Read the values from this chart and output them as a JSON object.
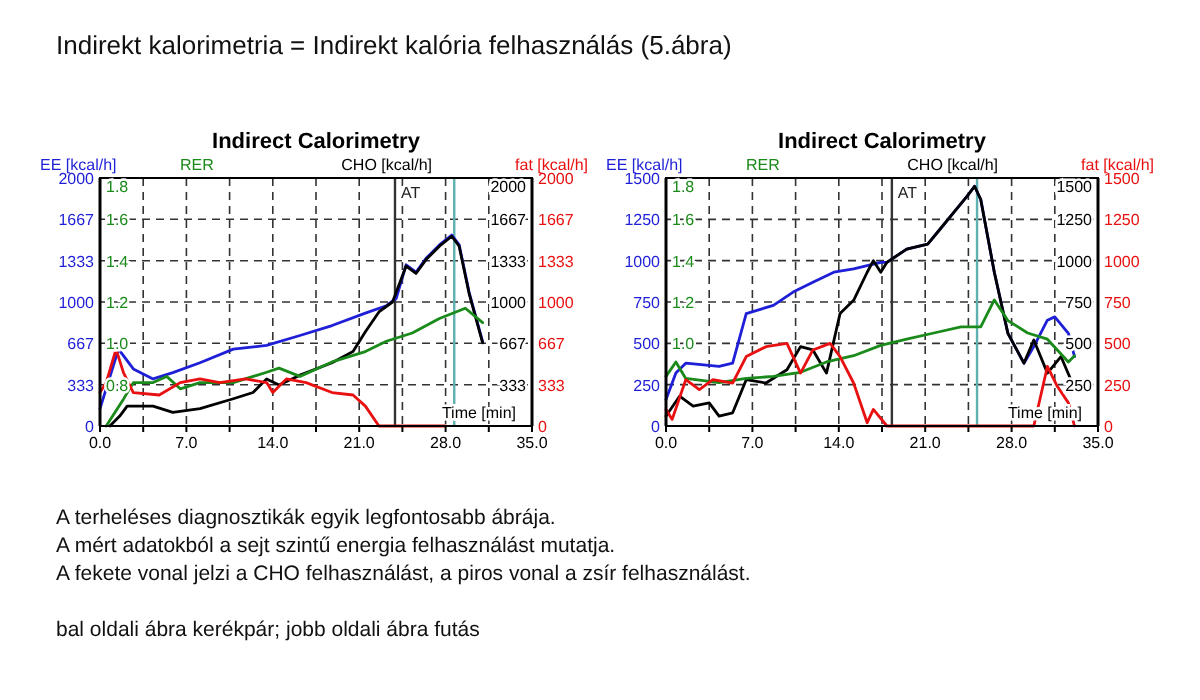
{
  "chart_data": [
    {
      "type": "other",
      "title": "Indirekt kalorimetria = Indirekt kalória felhasználás (5.ábra)",
      "annotations": [
        "A terheléses diagnosztikák egyik legfontosabb ábrája.",
        "A mért adatokból a sejt szintű energia felhasználást mutatja.",
        "A fekete vonal jelzi a CHO felhasználást, a piros vonal a zsír felhasználást.",
        "bal oldali ábra kerékpár; jobb oldali ábra futás"
      ]
    },
    {
      "type": "line",
      "title": "Indirect Calorimetry",
      "xlabel": "Time [min]",
      "ylabel": "EE [kcal/h]",
      "y2label": "fat [kcal/h]",
      "y3label": "RER",
      "grid": true,
      "xlim": [
        0,
        35
      ],
      "xticks": [
        {
          "value": 0,
          "label": "0.0"
        },
        {
          "value": 3.5,
          "label": null
        },
        {
          "value": 7,
          "label": "7.0"
        },
        {
          "value": 10.5,
          "label": null
        },
        {
          "value": 14,
          "label": "14.0"
        },
        {
          "value": 17.5,
          "label": null
        },
        {
          "value": 21,
          "label": "21.0"
        },
        {
          "value": 24.5,
          "label": null
        },
        {
          "value": 28,
          "label": "28.0"
        },
        {
          "value": 31.5,
          "label": null
        },
        {
          "value": 35,
          "label": "35.0"
        }
      ],
      "ylim": [
        0,
        2000
      ],
      "yticks": [
        0,
        333,
        667,
        1000,
        1333,
        1667,
        2000
      ],
      "y2lim": [
        0,
        2000
      ],
      "y2ticks": [
        0,
        333,
        667,
        1000,
        1333,
        1667,
        2000
      ],
      "y3lim": [
        0.6,
        1.8
      ],
      "y3ticks": [
        {
          "value": 0.8,
          "label": "0.8"
        },
        {
          "value": 1,
          "label": "1.0"
        },
        {
          "value": 1.2,
          "label": "1.2"
        },
        {
          "value": 1.4,
          "label": "1.4"
        },
        {
          "value": 1.6,
          "label": "1.6"
        },
        {
          "value": 1.8,
          "label": "1.8"
        }
      ],
      "ref_lines": [
        {
          "axis": "x",
          "value": 23.9,
          "label": "AT",
          "color": "#333333"
        },
        {
          "axis": "x",
          "value": 28.7,
          "color": "#5fb0b0"
        }
      ],
      "annotations": [
        "333",
        "667",
        "1000",
        "1333",
        "1667",
        "2000"
      ],
      "series": [
        {
          "color": "#1f1fd8",
          "axis": "y",
          "x": [
            0,
            1.5,
            2.7,
            4.3,
            5.9,
            8.1,
            10.8,
            13.5,
            16.2,
            18.8,
            21.5,
            23.2,
            24,
            24.8,
            25.6,
            26.4,
            27.5,
            28.5,
            29.1,
            29.9,
            31.0
          ],
          "values": [
            140,
            620,
            460,
            380,
            430,
            510,
            620,
            650,
            730,
            810,
            910,
            970,
            1030,
            1300,
            1240,
            1350,
            1460,
            1540,
            1460,
            1080,
            680
          ]
        },
        {
          "name": "CHO [kcal/h]",
          "color": "#000000",
          "axis": "y",
          "x": [
            0.8,
            1.6,
            2.2,
            4.3,
            5.9,
            8.1,
            10.8,
            12.4,
            13.5,
            14.5,
            16.2,
            18.8,
            20.5,
            21.5,
            22.6,
            23.7,
            24.8,
            25.6,
            26.4,
            27.5,
            28.5,
            29.1,
            29.9,
            31.0
          ],
          "values": [
            0,
            80,
            160,
            160,
            110,
            140,
            220,
            270,
            380,
            330,
            410,
            510,
            600,
            760,
            920,
            1000,
            1290,
            1230,
            1340,
            1450,
            1530,
            1450,
            1070,
            670
          ]
        },
        {
          "color": "#1a8a1a",
          "axis": "y3",
          "x": [
            0.5,
            1.9,
            2.7,
            4.3,
            5.4,
            6.5,
            8.1,
            10.8,
            13.5,
            14.5,
            16.2,
            18.8,
            21.5,
            23.2,
            25.3,
            27.5,
            29.6,
            31.0
          ],
          "values": [
            0.6,
            0.73,
            0.81,
            0.81,
            0.84,
            0.78,
            0.81,
            0.81,
            0.86,
            0.88,
            0.84,
            0.91,
            0.96,
            1.01,
            1.05,
            1.12,
            1.17,
            1.1
          ]
        },
        {
          "color": "#e81010",
          "axis": "y2",
          "x": [
            0,
            0.5,
            1.3,
            1.9,
            2.7,
            4.8,
            6.5,
            8.1,
            9.7,
            11.8,
            13.5,
            14.0,
            15.1,
            16.7,
            18.8,
            20.5,
            21.5,
            22.6,
            24.2,
            28.0
          ],
          "values": [
            270,
            350,
            620,
            430,
            270,
            250,
            350,
            380,
            350,
            380,
            350,
            270,
            380,
            350,
            270,
            250,
            160,
            0,
            0,
            0
          ]
        }
      ]
    },
    {
      "type": "line",
      "title": "Indirect Calorimetry",
      "xlabel": "Time [min]",
      "ylabel": "EE [kcal/h]",
      "y2label": "fat [kcal/h]",
      "y3label": "RER",
      "grid": true,
      "xlim": [
        0,
        35
      ],
      "xticks": [
        {
          "value": 0,
          "label": "0.0"
        },
        {
          "value": 3.5,
          "label": null
        },
        {
          "value": 7,
          "label": "7.0"
        },
        {
          "value": 10.5,
          "label": null
        },
        {
          "value": 14,
          "label": "14.0"
        },
        {
          "value": 17.5,
          "label": null
        },
        {
          "value": 21,
          "label": "21.0"
        },
        {
          "value": 24.5,
          "label": null
        },
        {
          "value": 28,
          "label": "28.0"
        },
        {
          "value": 31.5,
          "label": null
        },
        {
          "value": 35,
          "label": "35.0"
        }
      ],
      "ylim": [
        0,
        1500
      ],
      "yticks": [
        0,
        250,
        500,
        750,
        1000,
        1250,
        1500
      ],
      "y2lim": [
        0,
        1500
      ],
      "y2ticks": [
        0,
        250,
        500,
        750,
        1000,
        1250,
        1500
      ],
      "y3lim": [
        0.6,
        1.8
      ],
      "y3ticks": [
        {
          "value": 1,
          "label": "1.0"
        },
        {
          "value": 1.2,
          "label": "1.2"
        },
        {
          "value": 1.4,
          "label": "1.4"
        },
        {
          "value": 1.6,
          "label": "1.6"
        },
        {
          "value": 1.8,
          "label": "1.8"
        }
      ],
      "ref_lines": [
        {
          "axis": "x",
          "value": 18.3,
          "label": "AT",
          "color": "#333333"
        },
        {
          "axis": "x",
          "value": 25.2,
          "color": "#5fb0b0"
        }
      ],
      "annotations": [
        "250",
        "500",
        "750",
        "1000",
        "1250",
        "1500"
      ],
      "series": [
        {
          "color": "#1f1fd8",
          "axis": "y",
          "x": [
            0,
            0.8,
            1.6,
            4.3,
            5.4,
            6.5,
            8.7,
            10.3,
            11.9,
            13.6,
            15.2,
            17.4,
            17.9,
            19.5,
            21.2,
            22.2,
            23.3,
            24.4,
            25,
            25.5,
            26.6,
            27.7,
            29.0,
            29.8,
            30.9,
            31.5,
            32.6,
            33.1
          ],
          "values": [
            160,
            320,
            380,
            360,
            380,
            680,
            730,
            810,
            870,
            930,
            950,
            990,
            990,
            1070,
            1100,
            1190,
            1290,
            1390,
            1450,
            1370,
            930,
            560,
            380,
            480,
            640,
            660,
            560,
            420
          ]
        },
        {
          "name": "CHO [kcal/h]",
          "color": "#000000",
          "axis": "y",
          "x": [
            0,
            1.1,
            2.2,
            3.5,
            4.3,
            5.4,
            6.5,
            8.1,
            9.8,
            10.9,
            11.9,
            13.0,
            14.1,
            15.2,
            16.3,
            16.8,
            17.4,
            17.9,
            19.5,
            21.2,
            22.2,
            23.3,
            24.4,
            25,
            25.5,
            26.6,
            27.7,
            29.0,
            29.8,
            30.9,
            32.0,
            32.8
          ],
          "values": [
            60,
            180,
            120,
            140,
            60,
            80,
            280,
            260,
            340,
            480,
            460,
            320,
            680,
            760,
            930,
            1000,
            930,
            990,
            1070,
            1100,
            1190,
            1290,
            1390,
            1450,
            1370,
            930,
            560,
            380,
            520,
            320,
            420,
            280
          ]
        },
        {
          "color": "#1a8a1a",
          "axis": "y3",
          "x": [
            0,
            0.8,
            1.6,
            4.3,
            6.5,
            8.7,
            10.9,
            13.0,
            15.2,
            17.4,
            19.5,
            21.7,
            23.9,
            25.5,
            26.6,
            27.7,
            29.3,
            30.9,
            32.6,
            33.1
          ],
          "values": [
            0.84,
            0.91,
            0.83,
            0.81,
            0.83,
            0.84,
            0.86,
            0.91,
            0.94,
            0.99,
            1.02,
            1.05,
            1.08,
            1.08,
            1.21,
            1.11,
            1.05,
            1.02,
            0.91,
            0.94
          ]
        },
        {
          "color": "#e81010",
          "axis": "y2",
          "x": [
            0,
            0.5,
            1.6,
            2.7,
            3.8,
            5.4,
            6.5,
            8.1,
            9.8,
            10.9,
            11.9,
            13.3,
            14.1,
            15.2,
            16.3,
            16.8,
            17.9,
            29.8,
            30.9,
            31.7,
            32.6,
            33.1
          ],
          "values": [
            100,
            40,
            280,
            220,
            280,
            260,
            420,
            480,
            500,
            320,
            460,
            500,
            420,
            260,
            20,
            100,
            0,
            0,
            360,
            240,
            140,
            0
          ]
        }
      ]
    }
  ]
}
